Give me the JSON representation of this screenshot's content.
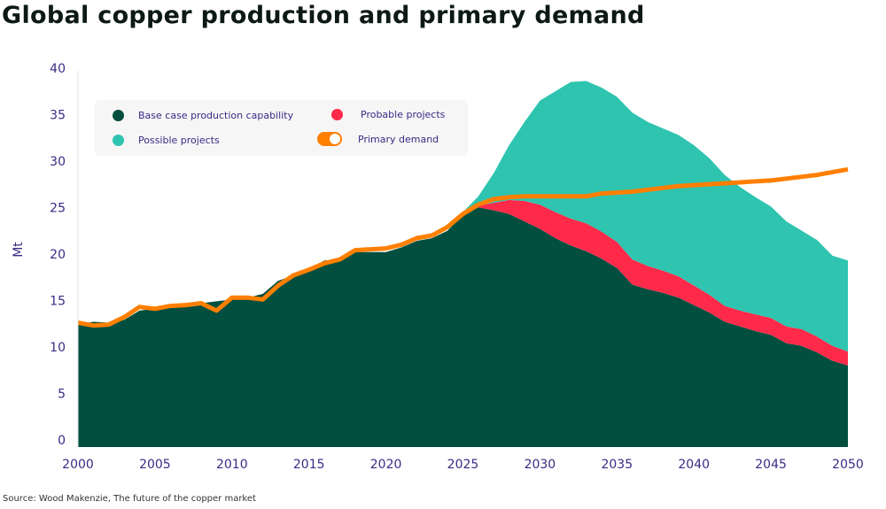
{
  "chart_data": {
    "type": "area",
    "title": "Global copper production and primary demand",
    "ylabel": "Mt",
    "xlabel": "",
    "xlim": [
      2000,
      2050
    ],
    "ylim": [
      0,
      40
    ],
    "x_ticks": [
      "2000",
      "2005",
      "2010",
      "2015",
      "2020",
      "2025",
      "2030",
      "2035",
      "2040",
      "2045",
      "2050"
    ],
    "y_ticks": [
      "0",
      "5",
      "10",
      "15",
      "20",
      "25",
      "30",
      "35",
      "40"
    ],
    "grid": false,
    "legend_placement": "top-left",
    "stacked": true,
    "x_start": 2000,
    "series": [
      {
        "name": "Base case production capability",
        "type": "area",
        "color": "#024f3f",
        "values": [
          12.7,
          13.0,
          12.9,
          13.2,
          14.2,
          14.4,
          14.6,
          14.8,
          15.0,
          15.2,
          15.4,
          15.6,
          16.0,
          17.4,
          18.0,
          18.7,
          19.6,
          19.7,
          20.5,
          20.5,
          20.5,
          21.0,
          21.7,
          22.0,
          22.8,
          24.5,
          25.3,
          25.0,
          24.6,
          23.8,
          23.0,
          22.0,
          21.2,
          20.6,
          19.8,
          18.8,
          17.0,
          16.5,
          16.1,
          15.6,
          14.8,
          14.0,
          13.0,
          12.5,
          12.0,
          11.6,
          10.7,
          10.4,
          9.7,
          8.8,
          8.3
        ]
      },
      {
        "name": "Probable projects",
        "type": "area",
        "color": "#ff2a4a",
        "values": [
          0,
          0,
          0,
          0,
          0,
          0,
          0,
          0,
          0,
          0,
          0,
          0,
          0,
          0,
          0,
          0,
          0,
          0,
          0,
          0,
          0,
          0,
          0,
          0,
          0,
          0,
          0.2,
          0.8,
          1.5,
          2.2,
          2.6,
          2.8,
          2.9,
          3.0,
          2.9,
          2.8,
          2.7,
          2.5,
          2.4,
          2.3,
          2.1,
          1.9,
          1.7,
          1.7,
          1.8,
          1.8,
          1.8,
          1.8,
          1.7,
          1.6,
          1.5
        ]
      },
      {
        "name": "Possible projects",
        "type": "area",
        "color": "#2ec4b0",
        "values": [
          0,
          0,
          0,
          0,
          0,
          0,
          0,
          0,
          0,
          0,
          0,
          0,
          0,
          0,
          0,
          0,
          0,
          0,
          0,
          0,
          0,
          0,
          0,
          0,
          0,
          0.3,
          1.0,
          3.2,
          5.9,
          8.5,
          11.2,
          13.0,
          14.7,
          15.3,
          15.5,
          15.6,
          15.8,
          15.5,
          15.3,
          15.2,
          15.1,
          14.7,
          14.1,
          13.3,
          12.6,
          12.0,
          11.3,
          10.6,
          10.4,
          9.7,
          9.8
        ]
      },
      {
        "name": "Primary demand",
        "type": "line",
        "color": "#ff7f00",
        "values": [
          12.9,
          12.6,
          12.7,
          13.5,
          14.6,
          14.4,
          14.7,
          14.8,
          15.0,
          14.2,
          15.6,
          15.6,
          15.4,
          16.9,
          18.0,
          18.6,
          19.3,
          19.7,
          20.7,
          20.8,
          20.9,
          21.3,
          22.0,
          22.3,
          23.2,
          24.6,
          25.6,
          26.2,
          26.4,
          26.5,
          26.5,
          26.5,
          26.5,
          26.5,
          26.8,
          26.9,
          27.0,
          27.2,
          27.4,
          27.6,
          27.7,
          27.8,
          27.9,
          28.0,
          28.1,
          28.2,
          28.4,
          28.6,
          28.8,
          29.1,
          29.4
        ]
      }
    ],
    "source": "Source: Wood Makenzie, The future of the copper market"
  }
}
